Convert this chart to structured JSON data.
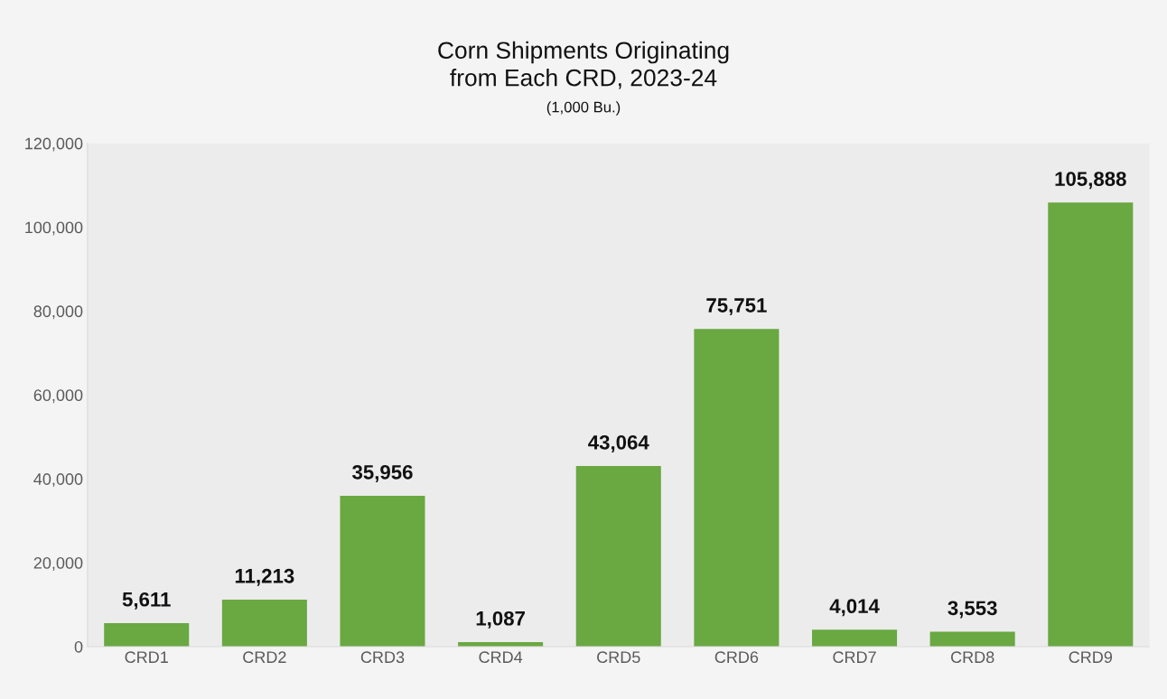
{
  "chart_data": {
    "type": "bar",
    "title": "Corn Shipments Originating\nfrom Each CRD, 2023-24",
    "subtitle": "(1,000 Bu.)",
    "categories": [
      "CRD1",
      "CRD2",
      "CRD3",
      "CRD4",
      "CRD5",
      "CRD6",
      "CRD7",
      "CRD8",
      "CRD9"
    ],
    "values": [
      5611,
      11213,
      35956,
      1087,
      43064,
      75751,
      4014,
      3553,
      105888
    ],
    "color": "#6aa842",
    "ylim": [
      0,
      120000
    ],
    "yticks": [
      {
        "value": 0,
        "label": "0"
      },
      {
        "value": 20000,
        "label": "20,000"
      },
      {
        "value": 40000,
        "label": "40,000"
      },
      {
        "value": 60000,
        "label": "60,000"
      },
      {
        "value": 80000,
        "label": "80,000"
      },
      {
        "value": 100000,
        "label": "100,000"
      },
      {
        "value": 120000,
        "label": "120,000"
      }
    ],
    "value_labels": [
      "5,611",
      "11,213",
      "35,956",
      "1,087",
      "43,064",
      "75,751",
      "4,014",
      "3,553",
      "105,888"
    ],
    "grid": false
  }
}
